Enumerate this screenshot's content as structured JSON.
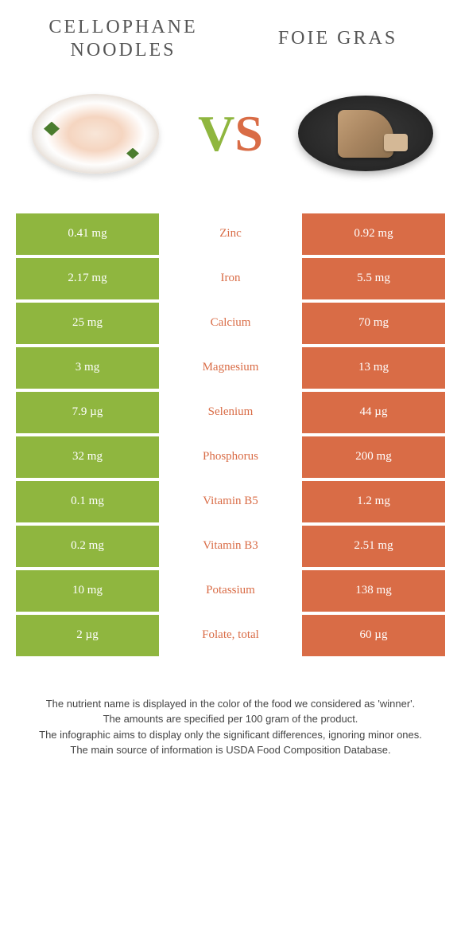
{
  "colors": {
    "green": "#8fb63f",
    "orange": "#d96c46"
  },
  "titles": {
    "left": "CELLOPHANE NOODLES",
    "right": "FOIE GRAS"
  },
  "vs": {
    "v": "V",
    "s": "S"
  },
  "rows": [
    {
      "left": "0.41 mg",
      "label": "Zinc",
      "right": "0.92 mg",
      "winner": "right"
    },
    {
      "left": "2.17 mg",
      "label": "Iron",
      "right": "5.5 mg",
      "winner": "right"
    },
    {
      "left": "25 mg",
      "label": "Calcium",
      "right": "70 mg",
      "winner": "right"
    },
    {
      "left": "3 mg",
      "label": "Magnesium",
      "right": "13 mg",
      "winner": "right"
    },
    {
      "left": "7.9 µg",
      "label": "Selenium",
      "right": "44 µg",
      "winner": "right"
    },
    {
      "left": "32 mg",
      "label": "Phosphorus",
      "right": "200 mg",
      "winner": "right"
    },
    {
      "left": "0.1 mg",
      "label": "Vitamin B5",
      "right": "1.2 mg",
      "winner": "right"
    },
    {
      "left": "0.2 mg",
      "label": "Vitamin B3",
      "right": "2.51 mg",
      "winner": "right"
    },
    {
      "left": "10 mg",
      "label": "Potassium",
      "right": "138 mg",
      "winner": "right"
    },
    {
      "left": "2 µg",
      "label": "Folate, total",
      "right": "60 µg",
      "winner": "right"
    }
  ],
  "footer": [
    "The nutrient name is displayed in the color of the food we considered as 'winner'.",
    "The amounts are specified per 100 gram of the product.",
    "The infographic aims to display only the significant differences, ignoring minor ones.",
    "The main source of information is USDA Food Composition Database."
  ]
}
